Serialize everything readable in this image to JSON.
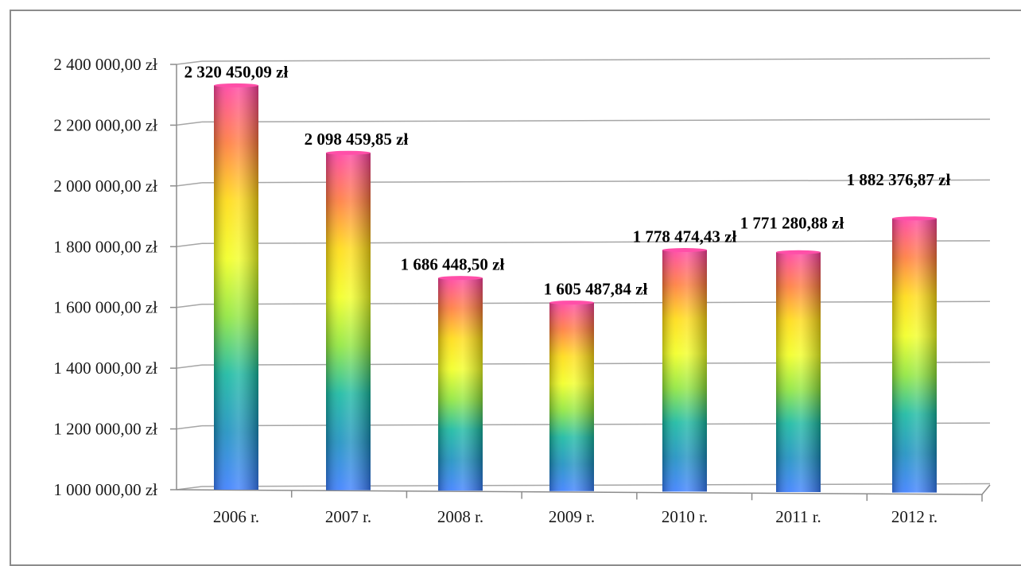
{
  "chart_data": {
    "type": "bar",
    "categories": [
      "2006 r.",
      "2007 r.",
      "2008 r.",
      "2009 r.",
      "2010 r.",
      "2011 r.",
      "2012 r."
    ],
    "values": [
      2320450.09,
      2098459.85,
      1686448.5,
      1605487.84,
      1778474.43,
      1771280.88,
      1882376.87
    ],
    "data_labels": [
      "2 320 450,09 zł",
      "2 098 459,85 zł",
      "1 686 448,50 zł",
      "1 605 487,84 zł",
      "1 778 474,43 zł",
      "1 771 280,88 zł",
      "1 882 376,87 zł"
    ],
    "ylim": [
      1000000,
      2400000
    ],
    "yticks": [
      1000000,
      1200000,
      1400000,
      1600000,
      1800000,
      2000000,
      2200000,
      2400000
    ],
    "ytick_labels": [
      "1 000 000,00 zł",
      "1 200 000,00 zł",
      "1 400 000,00 zł",
      "1 600 000,00 zł",
      "1 800 000,00 zł",
      "2 000 000,00 zł",
      "2 200 000,00 zł",
      "2 400 000,00 zł"
    ],
    "grid": true,
    "legend": "none",
    "bar_gradient": [
      "#ff3fa0",
      "#ff7a3a",
      "#ffdb10",
      "#f2ff20",
      "#8ee63a",
      "#15b8a0",
      "#1a8fc0",
      "#3a7dff"
    ],
    "colors": {
      "grid": "#a6a6a6",
      "axis": "#8c8c8c",
      "frame": "#8c8c8c"
    }
  }
}
